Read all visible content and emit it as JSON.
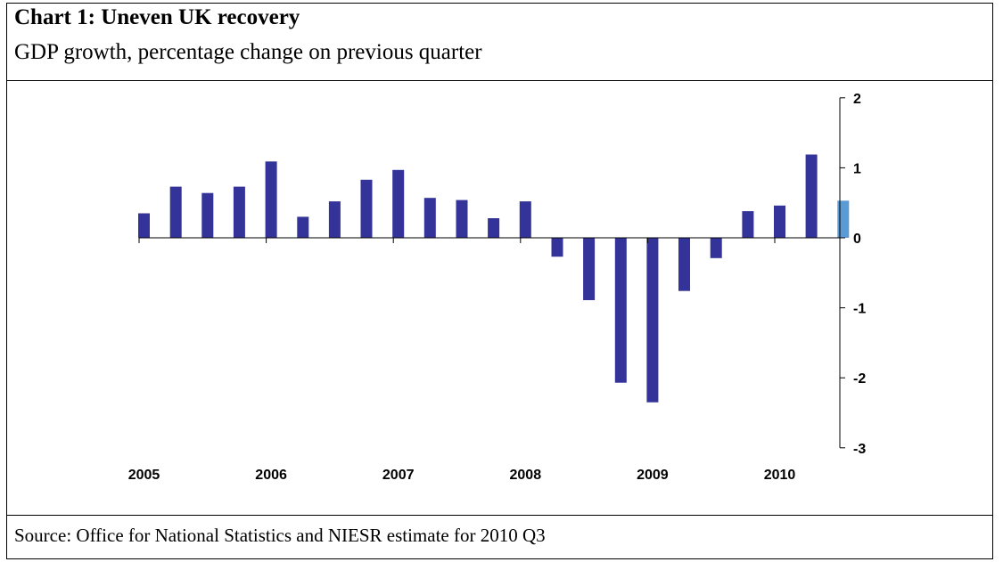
{
  "header": {
    "title": "Chart 1: Uneven UK recovery",
    "subtitle": "GDP growth, percentage change on previous quarter"
  },
  "footer": {
    "source": "Source: Office for National Statistics and NIESR estimate for 2010 Q3"
  },
  "chart_data": {
    "type": "bar",
    "title": "Chart 1: Uneven UK recovery",
    "subtitle": "GDP growth, percentage change on previous quarter",
    "xlabel": "",
    "ylabel": "",
    "ylim": [
      -3,
      2
    ],
    "yticks": [
      2,
      1,
      0,
      -1,
      -2,
      -3
    ],
    "ytick_labels": [
      "2",
      "1",
      "0",
      "-1",
      "-2",
      "-3"
    ],
    "y_axis_position": "right",
    "x_tick_labels": [
      "2005",
      "2006",
      "2007",
      "2008",
      "2009",
      "2010"
    ],
    "grid": false,
    "legend": "none",
    "colors": {
      "main": "#333399",
      "estimate": "#5b9bd5"
    },
    "categories": [
      "2005 Q1",
      "2005 Q2",
      "2005 Q3",
      "2005 Q4",
      "2006 Q1",
      "2006 Q2",
      "2006 Q3",
      "2006 Q4",
      "2007 Q1",
      "2007 Q2",
      "2007 Q3",
      "2007 Q4",
      "2008 Q1",
      "2008 Q2",
      "2008 Q3",
      "2008 Q4",
      "2009 Q1",
      "2009 Q2",
      "2009 Q3",
      "2009 Q4",
      "2010 Q1",
      "2010 Q2",
      "2010 Q3"
    ],
    "values": [
      0.35,
      0.73,
      0.64,
      0.73,
      1.09,
      0.3,
      0.52,
      0.83,
      0.97,
      0.57,
      0.54,
      0.28,
      0.52,
      -0.27,
      -0.89,
      -2.07,
      -2.35,
      -0.76,
      -0.29,
      0.38,
      0.46,
      1.19,
      0.53
    ],
    "estimate_index": 22
  }
}
